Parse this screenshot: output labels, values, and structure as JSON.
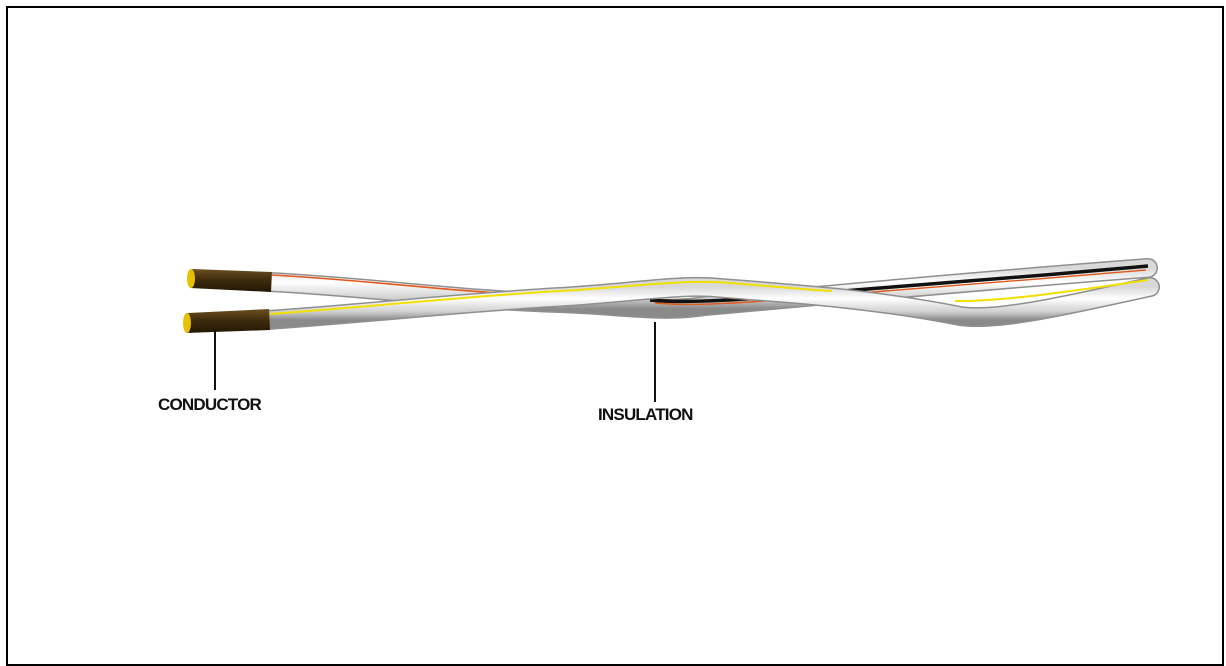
{
  "diagram": {
    "labels": {
      "conductor": "CONDUCTOR",
      "insulation": "INSULATION"
    },
    "colors": {
      "border": "#000000",
      "insulation_light": "#f4f4f4",
      "insulation_shadow": "#9a9a9a",
      "conductor_core": "#4a3512",
      "conductor_tip": "#e8c000",
      "stripe_yellow": "#f2e000",
      "stripe_orange": "#e2571a",
      "stripe_black": "#111111",
      "leader_line": "#111111"
    }
  }
}
